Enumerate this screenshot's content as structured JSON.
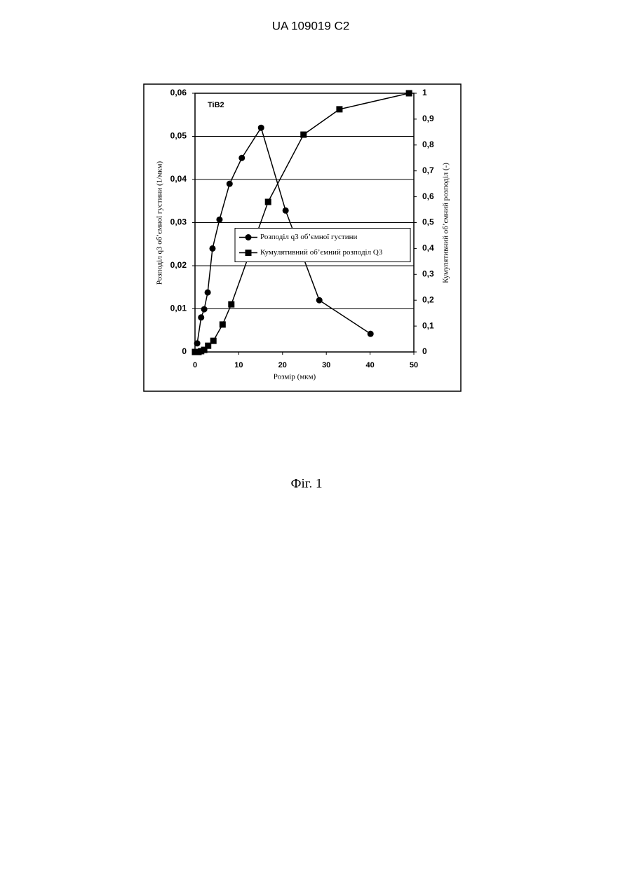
{
  "header": "UA   109019   C2",
  "caption": "Фіг. 1",
  "chart_data": {
    "type": "line",
    "annotation": "TiB2",
    "xlabel": "Розмір (мкм)",
    "ylabel": "Розподіл q3 об’ємної густини (1/мкм)",
    "y2label": "Кумулятивний об’ємний розподіл (-)",
    "xlim": [
      0,
      50
    ],
    "xticks": [
      0,
      10,
      20,
      30,
      40,
      50
    ],
    "ylim": [
      0,
      0.06
    ],
    "yticks": [
      0,
      {
        "value": 0.01,
        "label": "0,01"
      },
      {
        "value": 0.02,
        "label": "0,02"
      },
      {
        "value": 0.03,
        "label": "0,03"
      },
      {
        "value": 0.04,
        "label": "0,04"
      },
      {
        "value": 0.05,
        "label": "0,05"
      },
      {
        "value": 0.06,
        "label": "0,06"
      }
    ],
    "y2lim": [
      0,
      1
    ],
    "y2ticks": [
      0,
      {
        "value": 0.1,
        "label": "0,1"
      },
      {
        "value": 0.2,
        "label": "0,2"
      },
      {
        "value": 0.3,
        "label": "0,3"
      },
      {
        "value": 0.4,
        "label": "0,4"
      },
      {
        "value": 0.5,
        "label": "0,5"
      },
      {
        "value": 0.6,
        "label": "0,6"
      },
      {
        "value": 0.7,
        "label": "0,7"
      },
      {
        "value": 0.8,
        "label": "0,8"
      },
      {
        "value": 0.9,
        "label": "0,9"
      },
      1
    ],
    "grid": true,
    "legend": "right",
    "series": [
      {
        "name": "Розподіл q3 об’ємної густини",
        "color": "#000000",
        "marker": "circle",
        "x": [
          0.5,
          1.4,
          2.1,
          2.9,
          4.0,
          5.6,
          7.9,
          10.7,
          15.1,
          20.7,
          28.4,
          40.1
        ],
        "values": [
          0.002,
          0.008,
          0.0099,
          0.0138,
          0.024,
          0.0307,
          0.039,
          0.045,
          0.052,
          0.0328,
          0.012,
          0.0042
        ]
      },
      {
        "name": "Кумулятивний об’ємний розподіл Q3",
        "color": "#000000",
        "marker": "square",
        "axis": "y2",
        "x": [
          0,
          0.8,
          1.4,
          2.1,
          3.0,
          4.2,
          6.3,
          8.3,
          16.7,
          24.8,
          33.0,
          48.9
        ],
        "values": [
          0,
          0,
          0.003,
          0.008,
          0.024,
          0.043,
          0.106,
          0.184,
          0.58,
          0.84,
          0.938,
          1.0
        ]
      }
    ]
  }
}
